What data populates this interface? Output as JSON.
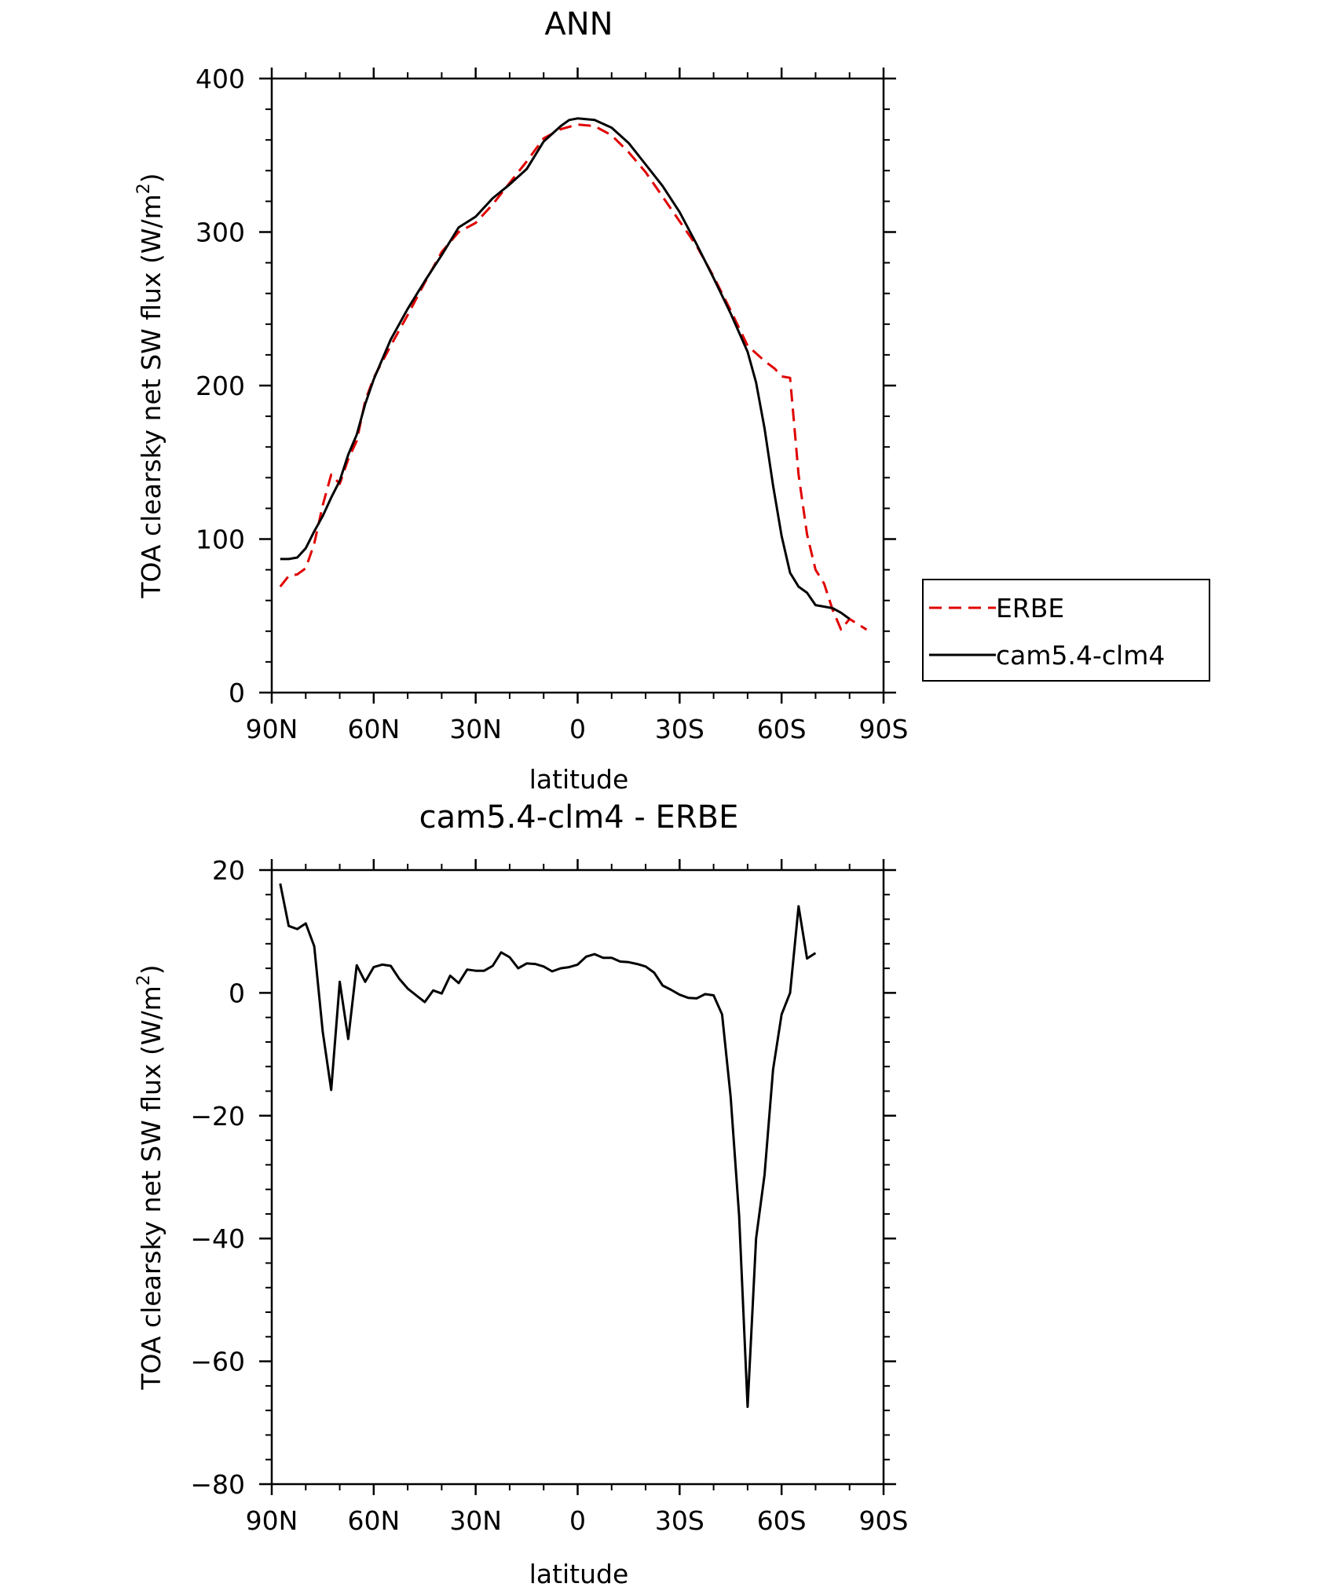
{
  "chart_data": [
    {
      "type": "line",
      "title": "ANN",
      "xlabel": "latitude",
      "ylabel": "TOA clearsky net SW flux (W/m²)",
      "ylabel_parts": {
        "main": "TOA clearsky net SW flux (W/m",
        "sup": "2",
        "end": ")"
      },
      "xlim": [
        -90,
        90
      ],
      "ylim": [
        0,
        400
      ],
      "x_direction": "north-to-south",
      "xticks": [
        {
          "value": -90,
          "label": "90N"
        },
        {
          "value": -60,
          "label": "60N"
        },
        {
          "value": -30,
          "label": "30N"
        },
        {
          "value": 0,
          "label": "0"
        },
        {
          "value": 30,
          "label": "30S"
        },
        {
          "value": 60,
          "label": "60S"
        },
        {
          "value": 90,
          "label": "90S"
        }
      ],
      "yticks": [
        0,
        100,
        200,
        300,
        400
      ],
      "yticklabels": [
        "0",
        "100",
        "200",
        "300",
        "400"
      ],
      "legend_position": "right",
      "series": [
        {
          "name": "ERBE",
          "color": "#e00000",
          "dash": "dashed",
          "points": [
            [
              -87.5,
              69
            ],
            [
              -85,
              76
            ],
            [
              -82.5,
              77
            ],
            [
              -80,
              81
            ],
            [
              -77.5,
              97
            ],
            [
              -75,
              122
            ],
            [
              -72.5,
              142
            ],
            [
              -70,
              136
            ],
            [
              -67.5,
              152
            ],
            [
              -65,
              164
            ],
            [
              -62.5,
              190
            ],
            [
              -60,
              205
            ],
            [
              -55,
              226
            ],
            [
              -50,
              246
            ],
            [
              -45,
              267
            ],
            [
              -40,
              287
            ],
            [
              -35,
              300
            ],
            [
              -30,
              306
            ],
            [
              -25,
              318
            ],
            [
              -20,
              332
            ],
            [
              -15,
              346
            ],
            [
              -10,
              361
            ],
            [
              -5,
              367
            ],
            [
              0,
              370
            ],
            [
              5,
              369
            ],
            [
              10,
              363
            ],
            [
              15,
              352
            ],
            [
              20,
              339
            ],
            [
              25,
              323
            ],
            [
              30,
              307
            ],
            [
              35,
              291
            ],
            [
              40,
              271
            ],
            [
              45,
              249
            ],
            [
              50,
              226
            ],
            [
              55,
              216
            ],
            [
              58,
              211
            ],
            [
              60,
              206
            ],
            [
              62.5,
              205
            ],
            [
              65,
              142
            ],
            [
              67.5,
              103
            ],
            [
              70,
              80
            ],
            [
              72.5,
              71
            ],
            [
              75,
              54
            ],
            [
              77.5,
              41
            ],
            [
              80,
              48
            ],
            [
              85,
              41
            ]
          ]
        },
        {
          "name": "cam5.4-clm4",
          "color": "#000000",
          "dash": "solid",
          "points": [
            [
              -87.5,
              87
            ],
            [
              -85,
              87
            ],
            [
              -82.5,
              88
            ],
            [
              -80,
              94
            ],
            [
              -77.5,
              105
            ],
            [
              -75,
              115
            ],
            [
              -72.5,
              127
            ],
            [
              -70,
              138
            ],
            [
              -67.5,
              155
            ],
            [
              -65,
              168
            ],
            [
              -62.5,
              188
            ],
            [
              -60,
              204
            ],
            [
              -55,
              230
            ],
            [
              -50,
              250
            ],
            [
              -45,
              268
            ],
            [
              -40,
              285
            ],
            [
              -35,
              303
            ],
            [
              -30,
              310
            ],
            [
              -25,
              322
            ],
            [
              -20,
              331
            ],
            [
              -15,
              341
            ],
            [
              -10,
              359
            ],
            [
              -5,
              369
            ],
            [
              -2.5,
              373
            ],
            [
              0,
              374
            ],
            [
              5,
              373
            ],
            [
              10,
              368
            ],
            [
              15,
              358
            ],
            [
              20,
              344
            ],
            [
              25,
              330
            ],
            [
              30,
              313
            ],
            [
              35,
              292
            ],
            [
              40,
              270
            ],
            [
              45,
              247
            ],
            [
              50,
              222
            ],
            [
              52.5,
              202
            ],
            [
              55,
              172
            ],
            [
              57.5,
              135
            ],
            [
              60,
              102
            ],
            [
              62.5,
              78
            ],
            [
              65,
              69
            ],
            [
              67.5,
              65
            ],
            [
              70,
              57
            ],
            [
              72.5,
              56
            ],
            [
              75,
              55
            ],
            [
              77.5,
              52
            ],
            [
              80,
              48
            ]
          ]
        }
      ]
    },
    {
      "type": "line",
      "title": "cam5.4-clm4 - ERBE",
      "xlabel": "latitude",
      "ylabel": "TOA clearsky net SW flux (W/m²)",
      "ylabel_parts": {
        "main": "TOA clearsky net SW flux (W/m",
        "sup": "2",
        "end": ")"
      },
      "xlim": [
        -90,
        90
      ],
      "ylim": [
        -80,
        20
      ],
      "x_direction": "north-to-south",
      "xticks": [
        {
          "value": -90,
          "label": "90N"
        },
        {
          "value": -60,
          "label": "60N"
        },
        {
          "value": -30,
          "label": "30N"
        },
        {
          "value": 0,
          "label": "0"
        },
        {
          "value": 30,
          "label": "30S"
        },
        {
          "value": 60,
          "label": "60S"
        },
        {
          "value": 90,
          "label": "90S"
        }
      ],
      "yticks": [
        -80,
        -60,
        -40,
        -20,
        0,
        20
      ],
      "yticklabels": [
        "−80",
        "−60",
        "−40",
        "−20",
        "0",
        "20"
      ],
      "series": [
        {
          "name": "",
          "color": "#000000",
          "dash": "solid",
          "points": [
            [
              -87.5,
              17.8
            ],
            [
              -85,
              10.9
            ],
            [
              -82.5,
              10.4
            ],
            [
              -80,
              11.3
            ],
            [
              -77.5,
              7.6
            ],
            [
              -75,
              -6.3
            ],
            [
              -72.5,
              -15.8
            ],
            [
              -70,
              1.8
            ],
            [
              -67.5,
              -7.5
            ],
            [
              -65,
              4.5
            ],
            [
              -62.5,
              1.8
            ],
            [
              -60,
              4.2
            ],
            [
              -57.5,
              4.6
            ],
            [
              -55,
              4.4
            ],
            [
              -52.5,
              2.3
            ],
            [
              -50,
              0.7
            ],
            [
              -47.5,
              -0.4
            ],
            [
              -45,
              -1.5
            ],
            [
              -42.5,
              0.4
            ],
            [
              -40,
              -0.1
            ],
            [
              -37.5,
              2.8
            ],
            [
              -35,
              1.6
            ],
            [
              -32.5,
              3.8
            ],
            [
              -30,
              3.6
            ],
            [
              -27.5,
              3.6
            ],
            [
              -25,
              4.4
            ],
            [
              -22.5,
              6.6
            ],
            [
              -20,
              5.8
            ],
            [
              -17.5,
              4
            ],
            [
              -15,
              4.8
            ],
            [
              -12.5,
              4.7
            ],
            [
              -10,
              4.3
            ],
            [
              -7.5,
              3.5
            ],
            [
              -5,
              4
            ],
            [
              -2.5,
              4.2
            ],
            [
              0,
              4.6
            ],
            [
              2.5,
              5.9
            ],
            [
              5,
              6.3
            ],
            [
              7.5,
              5.7
            ],
            [
              10,
              5.7
            ],
            [
              12.5,
              5.1
            ],
            [
              15,
              5
            ],
            [
              17.5,
              4.7
            ],
            [
              20,
              4.3
            ],
            [
              22.5,
              3.3
            ],
            [
              25,
              1.2
            ],
            [
              27.5,
              0.5
            ],
            [
              30,
              -0.3
            ],
            [
              32.5,
              -0.8
            ],
            [
              35,
              -0.9
            ],
            [
              37.5,
              -0.2
            ],
            [
              40,
              -0.4
            ],
            [
              42.5,
              -3.5
            ],
            [
              45,
              -16.9
            ],
            [
              47.5,
              -36.3
            ],
            [
              50,
              -67.4
            ],
            [
              52.5,
              -40
            ],
            [
              55,
              -29.6
            ],
            [
              57.5,
              -12.5
            ],
            [
              60,
              -3.5
            ],
            [
              62.5,
              0
            ],
            [
              65,
              14.1
            ],
            [
              67.5,
              5.6
            ],
            [
              70,
              6.5
            ]
          ]
        }
      ]
    }
  ]
}
